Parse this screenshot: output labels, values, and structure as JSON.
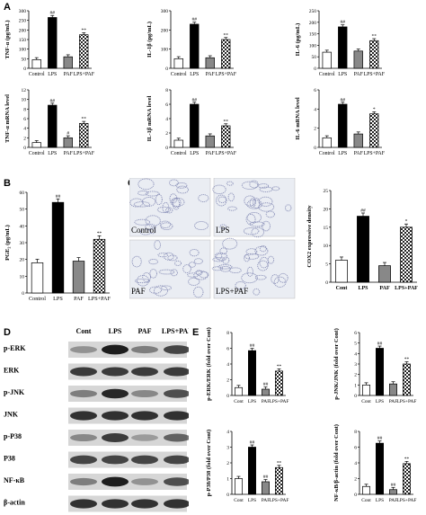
{
  "panel_labels": {
    "a": "A",
    "b": "B",
    "c": "C",
    "d": "D",
    "e": "E"
  },
  "colors": {
    "control": "#ffffff",
    "lps": "#000000",
    "paf": "#888888",
    "lps_paf": "checker",
    "stroke": "#000000",
    "tissue_bg": "#eaedf3",
    "tissue_cells": "#8a90b8"
  },
  "chart_data": [
    {
      "id": "A1",
      "type": "bar",
      "ylabel": "TNF-α (pg/mL)",
      "ylim": [
        0,
        300
      ],
      "yticks": [
        0,
        50,
        100,
        150,
        200,
        250,
        300
      ],
      "categories": [
        "Control",
        "LPS",
        "PAF",
        "LPS+PAF"
      ],
      "values": [
        45,
        265,
        60,
        175
      ],
      "annotations": [
        "",
        "##",
        "",
        "**"
      ]
    },
    {
      "id": "A2",
      "type": "bar",
      "ylabel": "IL-1β (pg/mL)",
      "ylim": [
        0,
        300
      ],
      "yticks": [
        0,
        100,
        200,
        300
      ],
      "categories": [
        "Control",
        "LPS",
        "PAF",
        "LPS+PAF"
      ],
      "values": [
        50,
        230,
        55,
        150
      ],
      "annotations": [
        "",
        "##",
        "",
        "**"
      ]
    },
    {
      "id": "A3",
      "type": "bar",
      "ylabel": "IL-6 (pg/mL)",
      "ylim": [
        0,
        250
      ],
      "yticks": [
        0,
        50,
        100,
        150,
        200,
        250
      ],
      "categories": [
        "Control",
        "LPS",
        "PAF",
        "LPS+PAF"
      ],
      "values": [
        70,
        180,
        75,
        120
      ],
      "annotations": [
        "",
        "##",
        "",
        "**"
      ]
    },
    {
      "id": "A4",
      "type": "bar",
      "ylabel": "TNF-α mRNA level",
      "ylim": [
        0,
        12
      ],
      "yticks": [
        0,
        2,
        4,
        6,
        8,
        10,
        12
      ],
      "categories": [
        "Control",
        "LPS",
        "PAF",
        "LPS+PAF"
      ],
      "values": [
        1,
        8.8,
        2,
        5
      ],
      "annotations": [
        "",
        "##",
        "#",
        "**"
      ]
    },
    {
      "id": "A5",
      "type": "bar",
      "ylabel": "IL-1β mRNA level",
      "ylim": [
        0,
        8
      ],
      "yticks": [
        0,
        2,
        4,
        6,
        8
      ],
      "categories": [
        "Control",
        "LPS",
        "PAF",
        "LPS+PAF"
      ],
      "values": [
        1,
        6,
        1.6,
        3
      ],
      "annotations": [
        "",
        "##",
        "",
        "**"
      ]
    },
    {
      "id": "A6",
      "type": "bar",
      "ylabel": "IL-6 mRNA level",
      "ylim": [
        0,
        6
      ],
      "yticks": [
        0,
        2,
        4,
        6
      ],
      "categories": [
        "Control",
        "LPS",
        "PAF",
        "LPS+PAF"
      ],
      "values": [
        1,
        4.5,
        1.4,
        3.5
      ],
      "annotations": [
        "",
        "##",
        "",
        "*"
      ]
    },
    {
      "id": "B",
      "type": "bar",
      "ylabel": "PGE₂ (pg/mL)",
      "ylim": [
        0,
        60
      ],
      "yticks": [
        0,
        10,
        20,
        30,
        40,
        50,
        60
      ],
      "categories": [
        "Control",
        "LPS",
        "PAF",
        "LPS+PAF"
      ],
      "values": [
        18,
        54,
        19,
        32
      ],
      "annotations": [
        "",
        "##",
        "",
        "**"
      ]
    },
    {
      "id": "C",
      "type": "bar",
      "ylabel": "COX2 expressive density",
      "ylim": [
        0,
        25
      ],
      "yticks": [
        0,
        5,
        10,
        15,
        20,
        25
      ],
      "categories": [
        "Cont",
        "LPS",
        "PAF",
        "LPS+PAF"
      ],
      "values": [
        6,
        18,
        4.5,
        15
      ],
      "annotations": [
        "",
        "##",
        "",
        "*"
      ]
    },
    {
      "id": "E1",
      "type": "bar",
      "ylabel": "p-ERK/ERK (fold over Cont)",
      "ylim": [
        0,
        8
      ],
      "yticks": [
        0,
        2,
        4,
        6,
        8
      ],
      "categories": [
        "Cont",
        "LPS",
        "PAF",
        "LPS+PAF"
      ],
      "values": [
        1,
        5.7,
        0.8,
        3.1
      ],
      "annotations": [
        "",
        "##",
        "##",
        "**"
      ]
    },
    {
      "id": "E2",
      "type": "bar",
      "ylabel": "p-JNK/JNK (fold over Cont)",
      "ylim": [
        0,
        6
      ],
      "yticks": [
        0,
        1,
        2,
        3,
        4,
        5,
        6
      ],
      "categories": [
        "Cont",
        "LPS",
        "PAF",
        "LPS+PAF"
      ],
      "values": [
        1,
        4.5,
        1.1,
        3
      ],
      "annotations": [
        "",
        "##",
        "",
        "**"
      ]
    },
    {
      "id": "E3",
      "type": "bar",
      "ylabel": "p-P38/P38 (fold over Cont)",
      "ylim": [
        0,
        4
      ],
      "yticks": [
        0,
        1,
        2,
        3,
        4
      ],
      "categories": [
        "Cont",
        "LPS",
        "PAF",
        "LPS+PAF"
      ],
      "values": [
        1,
        3,
        0.8,
        1.7
      ],
      "annotations": [
        "",
        "##",
        "##",
        "**"
      ]
    },
    {
      "id": "E4",
      "type": "bar",
      "ylabel": "NF-κB/β-actin (fold over Cont)",
      "ylim": [
        0,
        8
      ],
      "yticks": [
        0,
        2,
        4,
        6,
        8
      ],
      "categories": [
        "Cont",
        "LPS",
        "PAF",
        "LPS+PAF"
      ],
      "values": [
        1,
        6.5,
        0.6,
        3.9
      ],
      "annotations": [
        "",
        "##",
        "##",
        "**"
      ]
    }
  ],
  "micrographs": {
    "labels": [
      "Control",
      "LPS",
      "PAF",
      "LPS+PAF"
    ]
  },
  "blot": {
    "columns": [
      "Cont",
      "LPS",
      "PAF",
      "LPS+PAF"
    ],
    "rows": [
      "p-ERK",
      "ERK",
      "p-JNK",
      "JNK",
      "p-P38",
      "P38",
      "NF-κB",
      "β-actin"
    ]
  }
}
